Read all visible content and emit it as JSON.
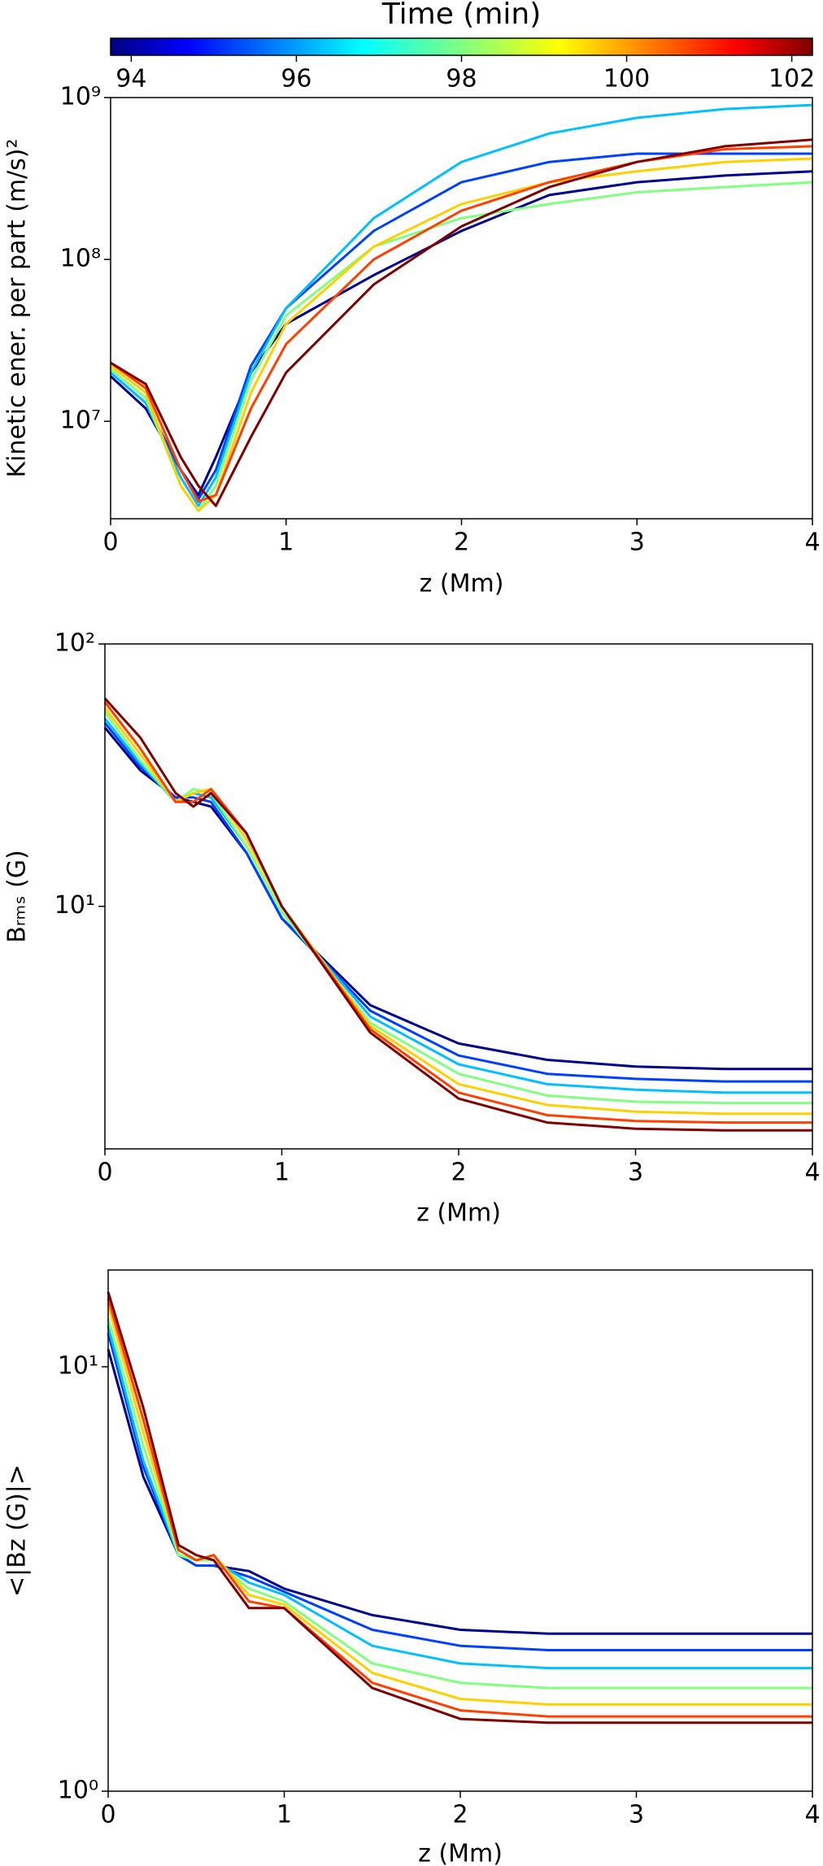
{
  "chart_data": [
    {
      "type": "line",
      "xlabel": "z (Mm)",
      "ylabel": "Kinetic ener. per part (m/s)²",
      "log_y": true,
      "colorbar": {
        "label": "Time (min)",
        "colormap": "jet",
        "clim": [
          93.75,
          102.25
        ],
        "ticks": [
          94,
          96,
          98,
          100,
          102
        ]
      },
      "x": [
        0,
        0.2,
        0.4,
        0.5,
        0.6,
        0.8,
        1,
        1.5,
        2,
        2.5,
        3,
        3.5,
        4
      ],
      "xlim": [
        0,
        4
      ],
      "xticks": [
        0,
        1,
        2,
        3,
        4
      ],
      "ylim": [
        2500000,
        1000000000
      ],
      "yticks": [
        {
          "value": 10000000,
          "label": "10⁷"
        },
        {
          "value": 100000000,
          "label": "10⁸"
        },
        {
          "value": 1000000000,
          "label": "10⁹"
        }
      ],
      "series": [
        {
          "color": "#00008f",
          "values": [
            19000000,
            12000000,
            5000000,
            3500000,
            6000000,
            20000000,
            40000000,
            80000000,
            150000000,
            250000000,
            300000000,
            330000000,
            350000000
          ]
        },
        {
          "color": "#0040ff",
          "values": [
            20000000,
            13000000,
            5000000,
            3300000,
            5000000,
            22000000,
            50000000,
            150000000,
            300000000,
            400000000,
            450000000,
            450000000,
            450000000
          ]
        },
        {
          "color": "#00c0ff",
          "values": [
            20000000,
            13000000,
            4500000,
            3000000,
            4500000,
            20000000,
            50000000,
            180000000,
            400000000,
            600000000,
            750000000,
            850000000,
            900000000
          ]
        },
        {
          "color": "#80ff80",
          "values": [
            21000000,
            14000000,
            4000000,
            2800000,
            4000000,
            18000000,
            45000000,
            120000000,
            180000000,
            220000000,
            260000000,
            280000000,
            300000000
          ]
        },
        {
          "color": "#ffd000",
          "values": [
            22000000,
            15000000,
            4000000,
            2800000,
            3500000,
            15000000,
            40000000,
            120000000,
            220000000,
            300000000,
            350000000,
            400000000,
            420000000
          ]
        },
        {
          "color": "#ff4000",
          "values": [
            23000000,
            16000000,
            5000000,
            3200000,
            3500000,
            12000000,
            30000000,
            100000000,
            200000000,
            300000000,
            400000000,
            480000000,
            500000000
          ]
        },
        {
          "color": "#800000",
          "values": [
            23000000,
            17000000,
            6000000,
            4000000,
            3000000,
            8000000,
            20000000,
            70000000,
            160000000,
            280000000,
            400000000,
            500000000,
            550000000
          ]
        }
      ]
    },
    {
      "type": "line",
      "xlabel": "z (Mm)",
      "ylabel": "Bᵣₘₛ (G)",
      "log_y": true,
      "x": [
        0,
        0.2,
        0.4,
        0.5,
        0.6,
        0.8,
        1,
        1.5,
        2,
        2.5,
        3,
        3.5,
        4
      ],
      "xlim": [
        0,
        4
      ],
      "xticks": [
        0,
        1,
        2,
        3,
        4
      ],
      "ylim": [
        1.19,
        100
      ],
      "yticks": [
        {
          "value": 10,
          "label": "10¹"
        },
        {
          "value": 100,
          "label": "10²"
        }
      ],
      "series": [
        {
          "color": "#00008f",
          "values": [
            48,
            33,
            26,
            25,
            24,
            16,
            9,
            4.2,
            3,
            2.6,
            2.45,
            2.4,
            2.4
          ]
        },
        {
          "color": "#0040ff",
          "values": [
            50,
            34,
            26,
            26,
            25,
            16,
            9,
            4.0,
            2.7,
            2.3,
            2.2,
            2.15,
            2.15
          ]
        },
        {
          "color": "#00c0ff",
          "values": [
            52,
            35,
            25,
            27,
            26,
            17,
            9.5,
            3.8,
            2.5,
            2.1,
            2.0,
            1.95,
            1.95
          ]
        },
        {
          "color": "#80ff80",
          "values": [
            55,
            36,
            25,
            28,
            27,
            17,
            9.5,
            3.6,
            2.3,
            1.9,
            1.8,
            1.78,
            1.78
          ]
        },
        {
          "color": "#ffd000",
          "values": [
            57,
            38,
            25,
            27,
            28,
            18,
            10,
            3.5,
            2.1,
            1.75,
            1.65,
            1.62,
            1.62
          ]
        },
        {
          "color": "#ff4000",
          "values": [
            60,
            40,
            25,
            25,
            28,
            19,
            10,
            3.4,
            1.95,
            1.6,
            1.52,
            1.5,
            1.5
          ]
        },
        {
          "color": "#800000",
          "values": [
            62,
            44,
            27,
            24,
            27,
            19,
            10,
            3.3,
            1.85,
            1.5,
            1.42,
            1.4,
            1.4
          ]
        }
      ]
    },
    {
      "type": "line",
      "xlabel": "z (Mm)",
      "ylabel": "<|Bz (G)|>",
      "log_y": true,
      "x": [
        0,
        0.2,
        0.4,
        0.5,
        0.6,
        0.8,
        1,
        1.5,
        2,
        2.5,
        3,
        3.5,
        4
      ],
      "xlim": [
        0,
        4
      ],
      "xticks": [
        0,
        1,
        2,
        3,
        4
      ],
      "ylim": [
        1,
        16.9
      ],
      "yticks": [
        {
          "value": 1,
          "label": "10⁰"
        },
        {
          "value": 10,
          "label": "10¹"
        }
      ],
      "series": [
        {
          "color": "#00008f",
          "values": [
            11,
            5.5,
            3.6,
            3.4,
            3.4,
            3.3,
            3.0,
            2.6,
            2.4,
            2.35,
            2.35,
            2.35,
            2.35
          ]
        },
        {
          "color": "#0040ff",
          "values": [
            12,
            5.8,
            3.6,
            3.4,
            3.4,
            3.2,
            2.95,
            2.4,
            2.2,
            2.15,
            2.15,
            2.15,
            2.15
          ]
        },
        {
          "color": "#00c0ff",
          "values": [
            12.5,
            6,
            3.6,
            3.5,
            3.5,
            3.1,
            2.9,
            2.2,
            2.0,
            1.95,
            1.95,
            1.95,
            1.95
          ]
        },
        {
          "color": "#80ff80",
          "values": [
            13,
            6.5,
            3.6,
            3.5,
            3.5,
            3.0,
            2.8,
            2.0,
            1.8,
            1.75,
            1.75,
            1.75,
            1.75
          ]
        },
        {
          "color": "#ffd000",
          "values": [
            14,
            7,
            3.7,
            3.5,
            3.6,
            2.9,
            2.75,
            1.9,
            1.65,
            1.6,
            1.6,
            1.6,
            1.6
          ]
        },
        {
          "color": "#ff4000",
          "values": [
            14.5,
            7.5,
            3.7,
            3.5,
            3.6,
            2.8,
            2.7,
            1.8,
            1.55,
            1.5,
            1.5,
            1.5,
            1.5
          ]
        },
        {
          "color": "#800000",
          "values": [
            15,
            8,
            3.8,
            3.6,
            3.5,
            2.7,
            2.7,
            1.75,
            1.48,
            1.45,
            1.45,
            1.45,
            1.45
          ]
        }
      ]
    }
  ]
}
